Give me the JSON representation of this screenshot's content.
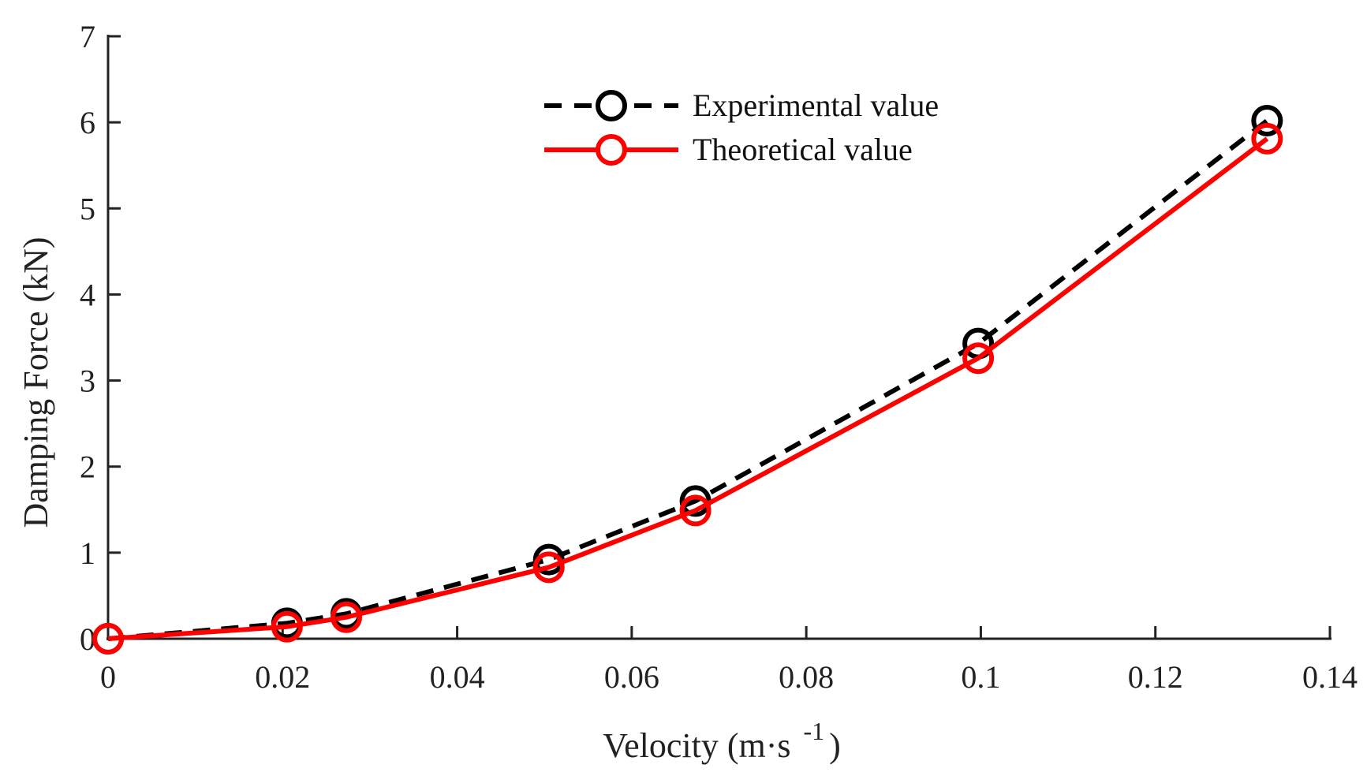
{
  "chart_data": {
    "type": "line",
    "title": "",
    "xlabel": "Velocity (m·s",
    "xlabel_superscript": "-1",
    "xlabel_close": ")",
    "ylabel": "Damping Force (kN)",
    "xlim": [
      0,
      0.14
    ],
    "ylim": [
      0,
      7
    ],
    "xticks": [
      0,
      0.02,
      0.04,
      0.06,
      0.08,
      0.1,
      0.12,
      0.14
    ],
    "xtick_labels": [
      "0",
      "0.02",
      "0.04",
      "0.06",
      "0.08",
      "0.1",
      "0.12",
      "0.14"
    ],
    "yticks": [
      0,
      1,
      2,
      3,
      4,
      5,
      6,
      7
    ],
    "ytick_labels": [
      "0",
      "1",
      "2",
      "3",
      "4",
      "5",
      "6",
      "7"
    ],
    "grid": false,
    "legend_position": "top-center",
    "series": [
      {
        "name": "Experimental value",
        "color": "#000000",
        "line_style": "dashed",
        "marker": "circle",
        "x": [
          0,
          0.0205,
          0.0273,
          0.0505,
          0.0673,
          0.0997,
          0.1328
        ],
        "y": [
          0,
          0.18,
          0.29,
          0.92,
          1.6,
          3.43,
          6.02
        ]
      },
      {
        "name": "Theoretical value",
        "color": "#ff0000",
        "line_style": "solid",
        "marker": "circle",
        "x": [
          0,
          0.0205,
          0.0273,
          0.0505,
          0.0673,
          0.0997,
          0.1328
        ],
        "y": [
          0,
          0.14,
          0.25,
          0.83,
          1.49,
          3.26,
          5.81
        ]
      }
    ]
  }
}
